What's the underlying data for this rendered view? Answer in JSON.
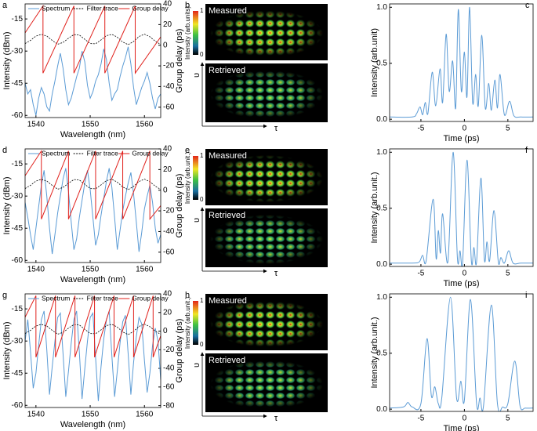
{
  "chart_data": [
    {
      "type": "line",
      "panel_label": "a",
      "xlabel": "Wavelength (nm)",
      "ylabel": "Intensity (dBm)",
      "y2label": "Group delay (ps)",
      "legend": "top",
      "xlim": [
        1538,
        1563
      ],
      "xticks": [
        1540,
        1550,
        1560
      ],
      "ylim": [
        -61,
        -8
      ],
      "yticks": [
        -15,
        -30,
        -45,
        -60
      ],
      "y2lim": [
        -70,
        40
      ],
      "y2ticks": [
        40,
        20,
        0,
        -20,
        -40,
        -60
      ],
      "series": [
        {
          "name": "Spectrum",
          "color": "#5b9bd5",
          "linestyle": "solid",
          "x": [
            1538,
            1538.5,
            1539,
            1539.5,
            1540,
            1540.5,
            1541,
            1541.5,
            1542,
            1542.5,
            1543,
            1543.5,
            1544,
            1544.5,
            1545,
            1545.5,
            1546,
            1546.5,
            1547,
            1547.5,
            1548,
            1548.5,
            1549,
            1549.5,
            1550,
            1550.5,
            1551,
            1551.5,
            1552,
            1552.5,
            1553,
            1553.5,
            1554,
            1554.5,
            1555,
            1555.5,
            1556,
            1556.5,
            1557,
            1557.5,
            1558,
            1558.5,
            1559,
            1559.5,
            1560,
            1560.5,
            1561,
            1561.5,
            1562,
            1562.5,
            1563
          ],
          "values": [
            -45,
            -50,
            -48,
            -55,
            -60,
            -52,
            -47,
            -50,
            -56,
            -58,
            -50,
            -44,
            -37,
            -31,
            -38,
            -48,
            -55,
            -52,
            -47,
            -42,
            -38,
            -30,
            -35,
            -46,
            -52,
            -49,
            -44,
            -41,
            -36,
            -29,
            -34,
            -45,
            -53,
            -50,
            -48,
            -42,
            -37,
            -33,
            -28,
            -36,
            -47,
            -55,
            -51,
            -47,
            -44,
            -40,
            -45,
            -52,
            -57,
            -52,
            -50
          ]
        },
        {
          "name": "Filter trace",
          "color": "#000000",
          "linestyle": "dashed",
          "x": [
            1538,
            1539,
            1540,
            1541,
            1542,
            1543,
            1544,
            1545,
            1546,
            1547,
            1548,
            1549,
            1550,
            1551,
            1552,
            1553,
            1554,
            1555,
            1556,
            1557,
            1558,
            1559,
            1560,
            1561,
            1562,
            1563
          ],
          "values": [
            -26.5,
            -25,
            -23,
            -22.2,
            -23,
            -25,
            -26.8,
            -26,
            -24,
            -22.3,
            -22.5,
            -24.5,
            -26.5,
            -26.6,
            -24.8,
            -22.8,
            -22.2,
            -23.5,
            -25.8,
            -27,
            -25.5,
            -23.2,
            -22.1,
            -23.3,
            -25.4,
            -26.9
          ]
        },
        {
          "name": "Group delay",
          "color": "#e0201b",
          "linestyle": "solid",
          "axis": "y2",
          "x": [
            1538,
            1541.3,
            1541.3,
            1547,
            1547,
            1552.7,
            1552.7,
            1558.3,
            1558.3,
            1563
          ],
          "values": [
            12,
            38,
            -27,
            38,
            -27,
            38,
            -27,
            38,
            -27,
            8
          ]
        }
      ]
    },
    {
      "type": "image",
      "panel_label": "b",
      "top_label": "Measured",
      "bottom_label": "Retrieved",
      "colorbar_label": "Intensity (arb.units)",
      "colorbar_ticks": [
        1,
        0
      ],
      "xlabel": "τ",
      "ylabel": "υ"
    },
    {
      "type": "line",
      "panel_label": "c",
      "xlabel": "Time (ps)",
      "ylabel": "Intensity (arb.unit)",
      "color": "#5b9bd5",
      "xlim": [
        -8.6,
        7.9
      ],
      "xticks": [
        -5,
        0,
        5
      ],
      "ylim": [
        -0.02,
        1.03
      ],
      "yticks": [
        {
          "value": 0,
          "label": "0.0"
        },
        {
          "value": 0.5,
          "label": "0.5"
        },
        {
          "value": 1,
          "label": "1.0"
        }
      ],
      "x": [
        -8.6,
        -6,
        -5.5,
        -5.1,
        -4.8,
        -4.5,
        -4.2,
        -3.7,
        -3.3,
        -2.8,
        -2.5,
        -2.1,
        -1.75,
        -1.35,
        -1.0,
        -0.7,
        -0.35,
        0.0,
        0.3,
        0.6,
        0.95,
        1.3,
        1.6,
        2.0,
        2.4,
        2.8,
        3.1,
        3.5,
        3.8,
        4.1,
        4.6,
        5.2,
        5.7,
        6.5,
        7.9
      ],
      "values": [
        0.02,
        0.02,
        0.05,
        0.11,
        0.04,
        0.15,
        0.05,
        0.42,
        0.12,
        0.45,
        0.15,
        0.76,
        0.25,
        0.52,
        0.1,
        0.98,
        0.25,
        0.6,
        0.2,
        1.0,
        0.15,
        0.4,
        0.12,
        0.75,
        0.1,
        0.32,
        0.08,
        0.35,
        0.1,
        0.4,
        0.04,
        0.16,
        0.03,
        0.02,
        0.02
      ]
    },
    {
      "type": "line",
      "panel_label": "d",
      "xlabel": "Wavelength (nm)",
      "ylabel": "Intensity (dBm)",
      "y2label": "Group delay (ps)",
      "legend": "top",
      "xlim": [
        1538,
        1563
      ],
      "xticks": [
        1540,
        1550,
        1560
      ],
      "ylim": [
        -61,
        -8
      ],
      "yticks": [
        -15,
        -30,
        -45,
        -60
      ],
      "y2lim": [
        -70,
        40
      ],
      "y2ticks": [
        40,
        20,
        0,
        -20,
        -40,
        -60
      ],
      "series": [
        {
          "name": "Spectrum",
          "color": "#5b9bd5",
          "linestyle": "solid",
          "x": [
            1538,
            1538.5,
            1539,
            1539.5,
            1540,
            1540.5,
            1541,
            1541.5,
            1542,
            1542.5,
            1543,
            1543.5,
            1544,
            1544.5,
            1545,
            1545.5,
            1546,
            1546.5,
            1547,
            1547.5,
            1548,
            1548.5,
            1549,
            1549.5,
            1550,
            1550.5,
            1551,
            1551.5,
            1552,
            1552.5,
            1553,
            1553.5,
            1554,
            1554.5,
            1555,
            1555.5,
            1556,
            1556.5,
            1557,
            1557.5,
            1558,
            1558.5,
            1559,
            1559.5,
            1560,
            1560.5,
            1561,
            1561.5,
            1562,
            1562.5,
            1563
          ],
          "values": [
            -33,
            -40,
            -48,
            -55,
            -45,
            -35,
            -25,
            -18,
            -30,
            -45,
            -57,
            -48,
            -38,
            -30,
            -22,
            -17,
            -28,
            -42,
            -55,
            -50,
            -40,
            -32,
            -24,
            -18,
            -27,
            -40,
            -53,
            -48,
            -39,
            -31,
            -23,
            -17,
            -26,
            -40,
            -55,
            -46,
            -37,
            -30,
            -24,
            -19,
            -29,
            -42,
            -56,
            -47,
            -36,
            -30,
            -25,
            -33,
            -45,
            -52,
            -48
          ]
        },
        {
          "name": "Filter trace",
          "color": "#000000",
          "linestyle": "dashed",
          "x": [
            1538,
            1539,
            1540,
            1541,
            1542,
            1543,
            1544,
            1545,
            1546,
            1547,
            1548,
            1549,
            1550,
            1551,
            1552,
            1553,
            1554,
            1555,
            1556,
            1557,
            1558,
            1559,
            1560,
            1561,
            1562,
            1563
          ],
          "values": [
            -26.5,
            -25,
            -23,
            -22.2,
            -23,
            -25,
            -26.8,
            -26,
            -24,
            -22.3,
            -22.5,
            -24.5,
            -26.5,
            -26.6,
            -24.8,
            -22.8,
            -22.2,
            -23.5,
            -25.8,
            -27,
            -25.5,
            -23.2,
            -22.1,
            -23.3,
            -25.4,
            -26.9
          ]
        },
        {
          "name": "Group delay",
          "color": "#e0201b",
          "linestyle": "solid",
          "axis": "y2",
          "x": [
            1538,
            1541,
            1541,
            1546,
            1546,
            1551,
            1551,
            1556,
            1556,
            1561,
            1561,
            1563
          ],
          "values": [
            14,
            38,
            -28,
            38,
            -28,
            38,
            -28,
            38,
            -28,
            38,
            -28,
            -15
          ]
        }
      ]
    },
    {
      "type": "image",
      "panel_label": "e",
      "top_label": "Measured",
      "bottom_label": "Retrieved",
      "colorbar_label": "Intensity (arb.unit.)",
      "colorbar_ticks": [
        1,
        0
      ],
      "xlabel": "τ",
      "ylabel": "υ"
    },
    {
      "type": "line",
      "panel_label": "f",
      "xlabel": "Time (ps)",
      "ylabel": "Intensity (arb.unit.)",
      "color": "#5b9bd5",
      "xlim": [
        -8.6,
        7.9
      ],
      "xticks": [
        -5,
        0,
        5
      ],
      "ylim": [
        -0.02,
        1.03
      ],
      "yticks": [
        {
          "value": 0,
          "label": "0.0"
        },
        {
          "value": 0.5,
          "label": "0.5"
        },
        {
          "value": 1,
          "label": "1.0"
        }
      ],
      "x": [
        -8.6,
        -6,
        -5.2,
        -4.8,
        -4.4,
        -3.6,
        -3.25,
        -3.0,
        -2.75,
        -2.5,
        -1.9,
        -1.3,
        -0.8,
        -0.5,
        -0.2,
        0.3,
        0.8,
        1.1,
        1.4,
        1.9,
        2.3,
        2.6,
        2.9,
        3.4,
        3.9,
        4.2,
        4.6,
        5.1,
        5.6,
        6.5,
        7.9
      ],
      "values": [
        0.01,
        0.01,
        0.02,
        0.08,
        0.03,
        0.58,
        0.05,
        0.3,
        0.1,
        0.45,
        0.02,
        1.0,
        0.05,
        0.12,
        0.02,
        0.93,
        0.03,
        0.15,
        0.02,
        0.77,
        0.04,
        0.2,
        0.03,
        0.48,
        0.02,
        0.06,
        0.01,
        0.12,
        0.01,
        0.01,
        0.01
      ]
    },
    {
      "type": "line",
      "panel_label": "g",
      "xlabel": "Wavelength (nm)",
      "ylabel": "Intensity (dBm)",
      "y2label": "Group delay (ps)",
      "legend": "top",
      "xlim": [
        1538,
        1563
      ],
      "xticks": [
        1540,
        1550,
        1560
      ],
      "ylim": [
        -61,
        -8
      ],
      "yticks": [
        -15,
        -30,
        -45,
        -60
      ],
      "y2lim": [
        -82,
        40
      ],
      "y2ticks": [
        40,
        20,
        0,
        -20,
        -40,
        -60,
        -80
      ],
      "series": [
        {
          "name": "Spectrum",
          "color": "#5b9bd5",
          "linestyle": "solid",
          "x": [
            1538,
            1538.5,
            1539,
            1539.5,
            1540,
            1540.5,
            1541,
            1541.5,
            1542,
            1542.5,
            1543,
            1543.5,
            1544,
            1544.5,
            1545,
            1545.5,
            1546,
            1546.5,
            1547,
            1547.5,
            1548,
            1548.5,
            1549,
            1549.5,
            1550,
            1550.5,
            1551,
            1551.5,
            1552,
            1552.5,
            1553,
            1553.5,
            1554,
            1554.5,
            1555,
            1555.5,
            1556,
            1556.5,
            1557,
            1557.5,
            1558,
            1558.5,
            1559,
            1559.5,
            1560,
            1560.5,
            1561,
            1561.5,
            1562,
            1562.5,
            1563
          ],
          "values": [
            -30,
            -20,
            -35,
            -52,
            -45,
            -32,
            -20,
            -16,
            -34,
            -55,
            -42,
            -30,
            -19,
            -17,
            -36,
            -56,
            -44,
            -31,
            -20,
            -16,
            -35,
            -57,
            -43,
            -30,
            -19,
            -17,
            -38,
            -58,
            -42,
            -29,
            -20,
            -16,
            -37,
            -56,
            -44,
            -31,
            -21,
            -18,
            -36,
            -55,
            -40,
            -28,
            -19,
            -22,
            -39,
            -54,
            -45,
            -32,
            -24,
            -30,
            -48
          ]
        },
        {
          "name": "Filter trace",
          "color": "#000000",
          "linestyle": "dashed",
          "x": [
            1538,
            1539,
            1540,
            1541,
            1542,
            1543,
            1544,
            1545,
            1546,
            1547,
            1548,
            1549,
            1550,
            1551,
            1552,
            1553,
            1554,
            1555,
            1556,
            1557,
            1558,
            1559,
            1560,
            1561,
            1562,
            1563
          ],
          "values": [
            -26.5,
            -25,
            -23,
            -22.2,
            -23,
            -25,
            -26.8,
            -26,
            -24,
            -22.3,
            -22.5,
            -24.5,
            -26.5,
            -26.6,
            -24.8,
            -22.8,
            -22.2,
            -23.5,
            -25.8,
            -27,
            -25.5,
            -23.2,
            -22.1,
            -23.3,
            -25.4,
            -26.9
          ]
        },
        {
          "name": "Group delay",
          "color": "#e0201b",
          "linestyle": "solid",
          "axis": "y2",
          "x": [
            1538,
            1540,
            1540,
            1543.6,
            1543.6,
            1547.2,
            1547.2,
            1550.8,
            1550.8,
            1554.4,
            1554.4,
            1558,
            1558,
            1561.6,
            1561.6,
            1563
          ],
          "values": [
            15,
            38,
            -28,
            38,
            -28,
            38,
            -28,
            38,
            -28,
            38,
            -28,
            38,
            -28,
            38,
            -28,
            -5
          ]
        }
      ]
    },
    {
      "type": "image",
      "panel_label": "h",
      "top_label": "Measured",
      "bottom_label": "Retrieved",
      "colorbar_label": "Intensity (arb.unit.)",
      "colorbar_ticks": [
        1,
        0
      ],
      "xlabel": "τ",
      "ylabel": "υ"
    },
    {
      "type": "line",
      "panel_label": "i",
      "xlabel": "Time (ps)",
      "ylabel": "Intensity (arb.unit.)",
      "color": "#5b9bd5",
      "xlim": [
        -8.6,
        7.9
      ],
      "xticks": [
        -5,
        0,
        5
      ],
      "ylim": [
        -0.02,
        1.03
      ],
      "yticks": [
        {
          "value": 0,
          "label": "0.0"
        },
        {
          "value": 0.5,
          "label": "0.5"
        },
        {
          "value": 1,
          "label": "1.0"
        }
      ],
      "x": [
        -8.6,
        -7,
        -6.5,
        -6,
        -5,
        -4.3,
        -3.8,
        -3.4,
        -3.0,
        -2.6,
        -1.6,
        -0.9,
        -0.4,
        0.0,
        0.7,
        1.4,
        1.8,
        2.2,
        3.1,
        3.8,
        4.4,
        5.0,
        5.8,
        6.4,
        7,
        7.9
      ],
      "values": [
        0.01,
        0.02,
        0.06,
        0.02,
        0.05,
        0.63,
        0.12,
        0.2,
        0.05,
        0.1,
        1.0,
        0.1,
        0.25,
        0.08,
        0.98,
        0.05,
        0.1,
        0.03,
        0.93,
        0.05,
        0.02,
        0.05,
        0.43,
        0.03,
        0.01,
        0.01
      ]
    }
  ]
}
